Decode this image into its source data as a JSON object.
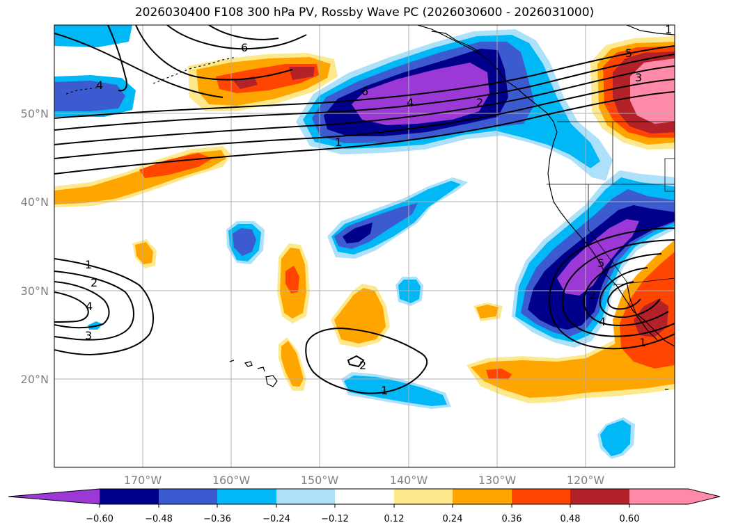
{
  "title": "2026030400 F108 300 hPa PV, Rossby Wave PC (2026030600 - 2026031000)",
  "colors": {
    "neg_060": "#9b38d6",
    "neg_048": "#00008b",
    "neg_036": "#3d5bd1",
    "neg_024": "#00b8f5",
    "neg_012": "#ade1fa",
    "zero": "#ffffff",
    "pos_012": "#fde98b",
    "pos_024": "#ffa500",
    "pos_036": "#ff4500",
    "pos_048": "#b22228",
    "pos_060": "#ff89a8",
    "grid": "#b0b0b0",
    "contour": "#000000"
  },
  "latitudes": [
    "50°N",
    "40°N",
    "30°N",
    "20°N"
  ],
  "longitudes": [
    "170°W",
    "160°W",
    "150°W",
    "140°W",
    "130°W",
    "120°W"
  ],
  "colorbar": {
    "ticks": [
      "−0.60",
      "−0.48",
      "−0.36",
      "−0.24",
      "−0.12",
      "0.12",
      "0.24",
      "0.36",
      "0.48",
      "0.60"
    ]
  },
  "contour_labels": [
    "6",
    "4",
    "2",
    "1",
    "5",
    "3",
    "4",
    "6",
    "1",
    "2",
    "4",
    "3",
    "2",
    "1",
    "1",
    "5",
    "2",
    "4",
    "1"
  ]
}
